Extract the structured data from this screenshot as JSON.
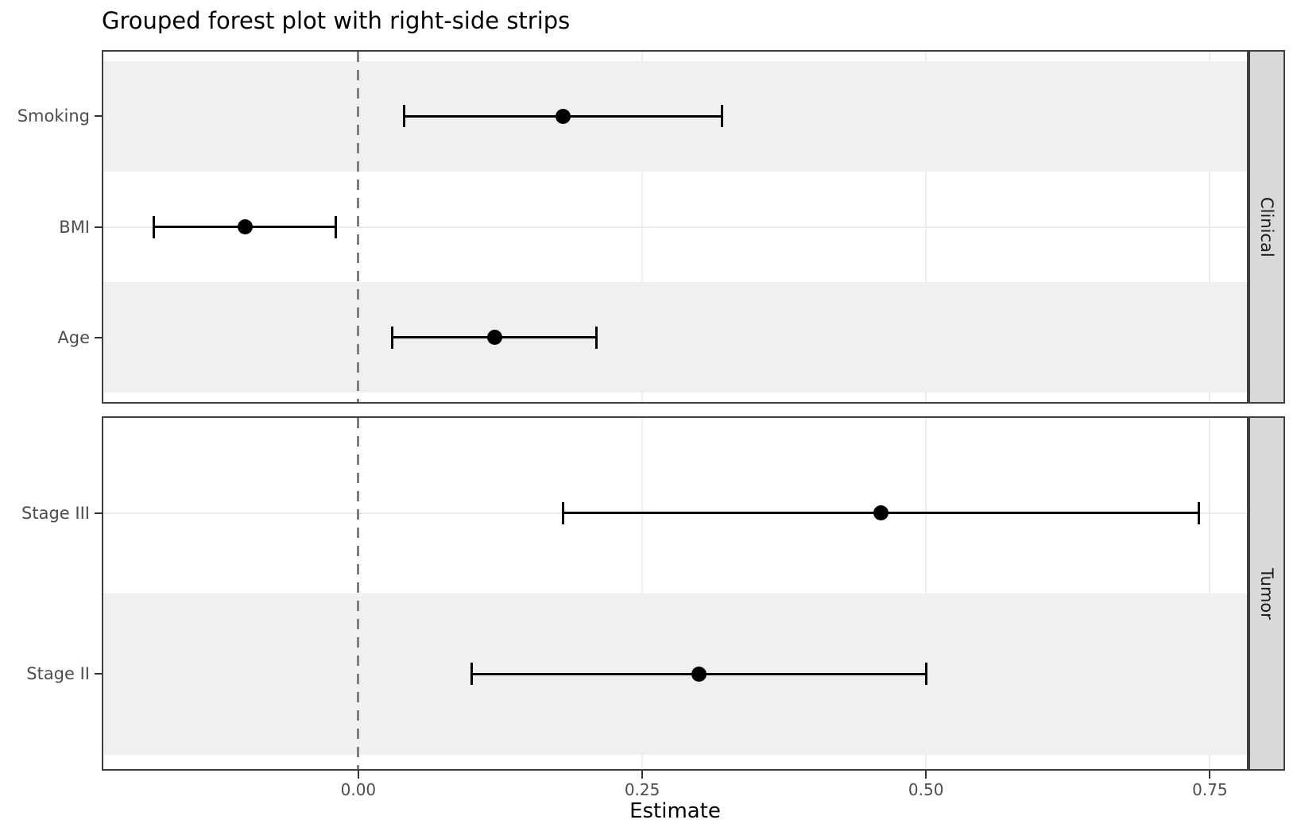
{
  "title": "Grouped forest plot with right-side strips",
  "axis": {
    "x_label": "Estimate",
    "x_ticks": [
      0,
      0.25,
      0.5,
      0.75
    ],
    "x_tick_labels": [
      "0.00",
      "0.25",
      "0.50",
      "0.75"
    ],
    "x_range": [
      -0.226,
      0.784
    ],
    "zero_line": 0
  },
  "colors": {
    "point": "#000000",
    "ci_line": "#000000",
    "zebra_band": "#f0f0f0",
    "gridline": "#ececec",
    "panel_border": "#3f3f3f",
    "strip_fill": "#d9d9d9",
    "strip_text": "#1a1a1a",
    "axis_text": "#4d4d4d",
    "tick_mark": "#333333",
    "zero_line": "#7e7e7e"
  },
  "chart_data": {
    "type": "forest",
    "title": "Grouped forest plot with right-side strips",
    "xlabel": "Estimate",
    "xlim": [
      -0.226,
      0.784
    ],
    "grid": "major-x and major-y",
    "strip_position": "right",
    "facets": [
      {
        "label": "Clinical",
        "rows": [
          {
            "label": "Smoking",
            "estimate": 0.18,
            "lower": 0.04,
            "upper": 0.32
          },
          {
            "label": "BMI",
            "estimate": -0.1,
            "lower": -0.18,
            "upper": -0.02
          },
          {
            "label": "Age",
            "estimate": 0.12,
            "lower": 0.03,
            "upper": 0.21
          }
        ]
      },
      {
        "label": "Tumor",
        "rows": [
          {
            "label": "Stage III",
            "estimate": 0.46,
            "lower": 0.18,
            "upper": 0.74
          },
          {
            "label": "Stage II",
            "estimate": 0.3,
            "lower": 0.1,
            "upper": 0.5
          }
        ]
      }
    ]
  }
}
